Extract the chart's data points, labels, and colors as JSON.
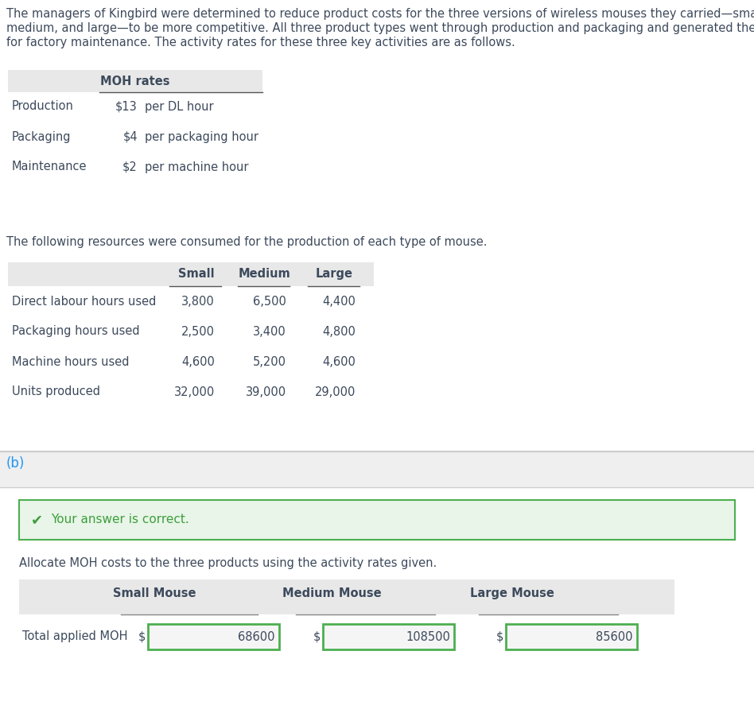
{
  "intro_line1": "The managers of Kingbird were determined to reduce product costs for the three versions of wireless mouses they carried—small,",
  "intro_line2": "medium, and large—to be more competitive. All three product types went through production and packaging and generated the need",
  "intro_line3": "for factory maintenance. The activity rates for these three key activities are as follows.",
  "table1_header": "MOH rates",
  "table1_rows": [
    [
      "Production",
      "$13",
      "per DL hour"
    ],
    [
      "Packaging",
      "$4",
      "per packaging hour"
    ],
    [
      "Maintenance",
      "$2",
      "per machine hour"
    ]
  ],
  "resources_text": "The following resources were consumed for the production of each type of mouse.",
  "table2_col_headers": [
    "Small",
    "Medium",
    "Large"
  ],
  "table2_rows": [
    [
      "Direct labour hours used",
      "3,800",
      "6,500",
      "4,400"
    ],
    [
      "Packaging hours used",
      "2,500",
      "3,400",
      "4,800"
    ],
    [
      "Machine hours used",
      "4,600",
      "5,200",
      "4,600"
    ],
    [
      "Units produced",
      "32,000",
      "39,000",
      "29,000"
    ]
  ],
  "section_b_label": "(b)",
  "correct_text": "Your answer is correct.",
  "allocate_text": "Allocate MOH costs to the three products using the activity rates given.",
  "table3_col_headers": [
    "Small Mouse",
    "Medium Mouse",
    "Large Mouse"
  ],
  "table3_row_label": "Total applied MOH",
  "table3_values": [
    "68600",
    "108500",
    "85600"
  ],
  "bg_color": "#ffffff",
  "table_header_bg": "#e8e8e8",
  "section_b_bg": "#efefef",
  "correct_bg": "#e8f5e8",
  "correct_border": "#4caf50",
  "correct_text_color": "#3d9e3d",
  "text_color": "#3d4a5c",
  "section_b_color": "#2196f3",
  "input_border": "#4caf50",
  "underline_color": "#555555",
  "separator_color": "#cccccc",
  "font_size": 10.5,
  "font_size_bold": 10.5
}
